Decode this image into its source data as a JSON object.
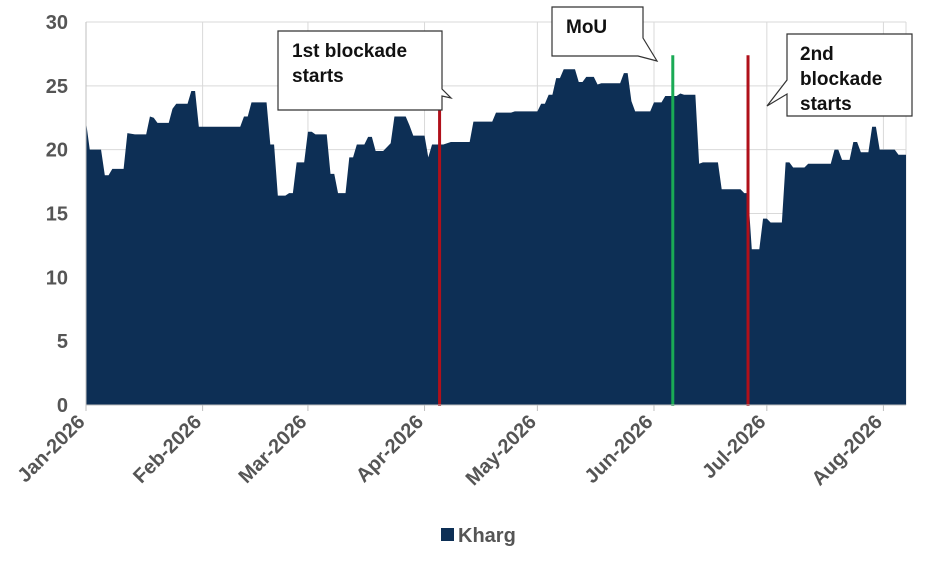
{
  "chart_data": {
    "type": "area",
    "title": "",
    "xlabel": "",
    "ylabel": "",
    "ylim": [
      0,
      30
    ],
    "yticks": [
      0,
      5,
      10,
      15,
      20,
      25,
      30
    ],
    "x_tick_labels": [
      "Jan-2026",
      "Feb-2026",
      "Mar-2026",
      "Apr-2026",
      "May-2026",
      "Jun-2026",
      "Jul-2026",
      "Aug-2026"
    ],
    "grid": true,
    "legend": "bottom-center",
    "colors": {
      "area": "#0d2f55",
      "blockade_line": "#b0101a",
      "mou_line": "#1aaa55",
      "grid": "#d9d9d9"
    },
    "series": [
      {
        "name": "Kharg",
        "points": [
          [
            "2026-01-01",
            22.2
          ],
          [
            "2026-01-02",
            20.0
          ],
          [
            "2026-01-05",
            20.0
          ],
          [
            "2026-01-06",
            18.0
          ],
          [
            "2026-01-07",
            18.0
          ],
          [
            "2026-01-08",
            18.5
          ],
          [
            "2026-01-11",
            18.5
          ],
          [
            "2026-01-12",
            21.3
          ],
          [
            "2026-01-14",
            21.2
          ],
          [
            "2026-01-17",
            21.2
          ],
          [
            "2026-01-18",
            22.6
          ],
          [
            "2026-01-19",
            22.5
          ],
          [
            "2026-01-20",
            22.1
          ],
          [
            "2026-01-23",
            22.1
          ],
          [
            "2026-01-24",
            23.2
          ],
          [
            "2026-01-25",
            23.6
          ],
          [
            "2026-01-28",
            23.6
          ],
          [
            "2026-01-29",
            24.6
          ],
          [
            "2026-01-30",
            24.6
          ],
          [
            "2026-01-31",
            21.8
          ],
          [
            "2026-02-11",
            21.8
          ],
          [
            "2026-02-12",
            22.6
          ],
          [
            "2026-02-13",
            22.6
          ],
          [
            "2026-02-14",
            23.7
          ],
          [
            "2026-02-18",
            23.7
          ],
          [
            "2026-02-19",
            20.4
          ],
          [
            "2026-02-20",
            20.4
          ],
          [
            "2026-02-21",
            16.4
          ],
          [
            "2026-02-23",
            16.4
          ],
          [
            "2026-02-24",
            16.6
          ],
          [
            "2026-02-25",
            16.6
          ],
          [
            "2026-02-26",
            19.0
          ],
          [
            "2026-02-28",
            19.0
          ],
          [
            "2026-03-01",
            21.4
          ],
          [
            "2026-03-02",
            21.4
          ],
          [
            "2026-03-03",
            21.2
          ],
          [
            "2026-03-06",
            21.2
          ],
          [
            "2026-03-07",
            18.1
          ],
          [
            "2026-03-08",
            18.1
          ],
          [
            "2026-03-09",
            16.6
          ],
          [
            "2026-03-11",
            16.6
          ],
          [
            "2026-03-12",
            19.4
          ],
          [
            "2026-03-13",
            19.4
          ],
          [
            "2026-03-14",
            20.4
          ],
          [
            "2026-03-16",
            20.4
          ],
          [
            "2026-03-17",
            21.0
          ],
          [
            "2026-03-18",
            21.0
          ],
          [
            "2026-03-19",
            19.9
          ],
          [
            "2026-03-21",
            19.9
          ],
          [
            "2026-03-23",
            20.5
          ],
          [
            "2026-03-24",
            22.6
          ],
          [
            "2026-03-27",
            22.6
          ],
          [
            "2026-03-28",
            21.9
          ],
          [
            "2026-03-29",
            21.1
          ],
          [
            "2026-04-01",
            21.1
          ],
          [
            "2026-04-02",
            19.4
          ],
          [
            "2026-04-03",
            20.4
          ],
          [
            "2026-04-06",
            20.4
          ],
          [
            "2026-04-08",
            20.6
          ],
          [
            "2026-04-13",
            20.6
          ],
          [
            "2026-04-14",
            22.2
          ],
          [
            "2026-04-19",
            22.2
          ],
          [
            "2026-04-20",
            22.9
          ],
          [
            "2026-04-24",
            22.9
          ],
          [
            "2026-04-25",
            23.0
          ],
          [
            "2026-05-01",
            23.0
          ],
          [
            "2026-05-02",
            23.6
          ],
          [
            "2026-05-03",
            23.6
          ],
          [
            "2026-05-04",
            24.3
          ],
          [
            "2026-05-05",
            24.3
          ],
          [
            "2026-05-06",
            25.6
          ],
          [
            "2026-05-07",
            25.6
          ],
          [
            "2026-05-08",
            26.3
          ],
          [
            "2026-05-11",
            26.3
          ],
          [
            "2026-05-12",
            25.3
          ],
          [
            "2026-05-13",
            25.3
          ],
          [
            "2026-05-14",
            25.7
          ],
          [
            "2026-05-16",
            25.7
          ],
          [
            "2026-05-17",
            25.1
          ],
          [
            "2026-05-18",
            25.2
          ],
          [
            "2026-05-23",
            25.2
          ],
          [
            "2026-05-24",
            26.0
          ],
          [
            "2026-05-25",
            26.0
          ],
          [
            "2026-05-26",
            23.8
          ],
          [
            "2026-05-27",
            23.0
          ],
          [
            "2026-05-31",
            23.0
          ],
          [
            "2026-06-01",
            23.7
          ],
          [
            "2026-06-03",
            23.7
          ],
          [
            "2026-06-04",
            24.2
          ],
          [
            "2026-06-07",
            24.2
          ],
          [
            "2026-06-08",
            24.4
          ],
          [
            "2026-06-09",
            24.3
          ],
          [
            "2026-06-12",
            24.3
          ],
          [
            "2026-06-13",
            18.9
          ],
          [
            "2026-06-14",
            19.0
          ],
          [
            "2026-06-18",
            19.0
          ],
          [
            "2026-06-19",
            16.9
          ],
          [
            "2026-06-24",
            16.9
          ],
          [
            "2026-06-25",
            16.6
          ],
          [
            "2026-06-26",
            16.6
          ],
          [
            "2026-06-27",
            12.2
          ],
          [
            "2026-06-29",
            12.2
          ],
          [
            "2026-06-30",
            14.6
          ],
          [
            "2026-07-01",
            14.6
          ],
          [
            "2026-07-02",
            14.3
          ],
          [
            "2026-07-05",
            14.3
          ],
          [
            "2026-07-06",
            19.0
          ],
          [
            "2026-07-07",
            19.0
          ],
          [
            "2026-07-08",
            18.6
          ],
          [
            "2026-07-11",
            18.6
          ],
          [
            "2026-07-12",
            18.9
          ],
          [
            "2026-07-18",
            18.9
          ],
          [
            "2026-07-19",
            20.0
          ],
          [
            "2026-07-20",
            20.0
          ],
          [
            "2026-07-21",
            19.2
          ],
          [
            "2026-07-23",
            19.2
          ],
          [
            "2026-07-24",
            20.6
          ],
          [
            "2026-07-25",
            20.6
          ],
          [
            "2026-07-26",
            19.8
          ],
          [
            "2026-07-28",
            19.8
          ],
          [
            "2026-07-29",
            21.8
          ],
          [
            "2026-07-30",
            21.8
          ],
          [
            "2026-07-31",
            20.0
          ],
          [
            "2026-08-04",
            20.0
          ],
          [
            "2026-08-05",
            19.6
          ],
          [
            "2026-08-07",
            19.6
          ]
        ]
      }
    ],
    "x_start": "2026-01-01",
    "x_end": "2026-08-07",
    "annotations": [
      {
        "label": "1st blockade starts",
        "date": "2026-04-05",
        "color": "blockade_line"
      },
      {
        "label": "MoU",
        "date": "2026-06-06",
        "color": "mou_line"
      },
      {
        "label": "2nd blockade starts",
        "date": "2026-06-26",
        "color": "blockade_line"
      }
    ]
  },
  "callouts": {
    "first_blockade": [
      "1st blockade",
      "starts"
    ],
    "mou": [
      "MoU"
    ],
    "second_blockade": [
      "2nd",
      "blockade",
      "starts"
    ]
  },
  "legend": {
    "label": "Kharg"
  }
}
